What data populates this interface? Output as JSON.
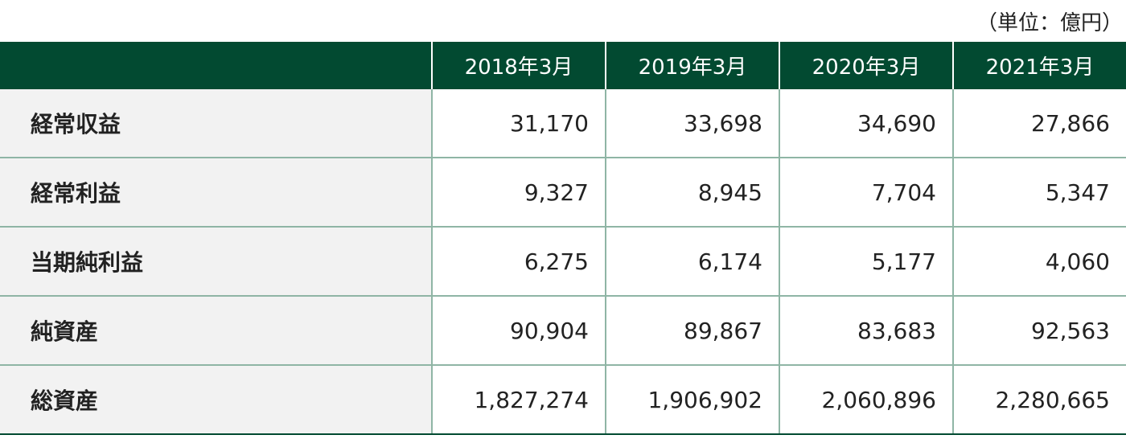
{
  "unit_note": "（単位：億円）",
  "table": {
    "header": [
      "",
      "2018年3月",
      "2019年3月",
      "2020年3月",
      "2021年3月"
    ],
    "rows": [
      {
        "label": "経常収益",
        "values": [
          "31,170",
          "33,698",
          "34,690",
          "27,866"
        ]
      },
      {
        "label": "経常利益",
        "values": [
          "9,327",
          "8,945",
          "7,704",
          "5,347"
        ]
      },
      {
        "label": "当期純利益",
        "values": [
          "6,275",
          "6,174",
          "5,177",
          "4,060"
        ]
      },
      {
        "label": "純資産",
        "values": [
          "90,904",
          "89,867",
          "83,683",
          "92,563"
        ]
      },
      {
        "label": "総資産",
        "values": [
          "1,827,274",
          "1,906,902",
          "2,060,896",
          "2,280,665"
        ]
      }
    ]
  },
  "colors": {
    "header_bg": "#024a31",
    "label_bg": "#f2f2f2",
    "grid_line": "#8fb5a5"
  }
}
